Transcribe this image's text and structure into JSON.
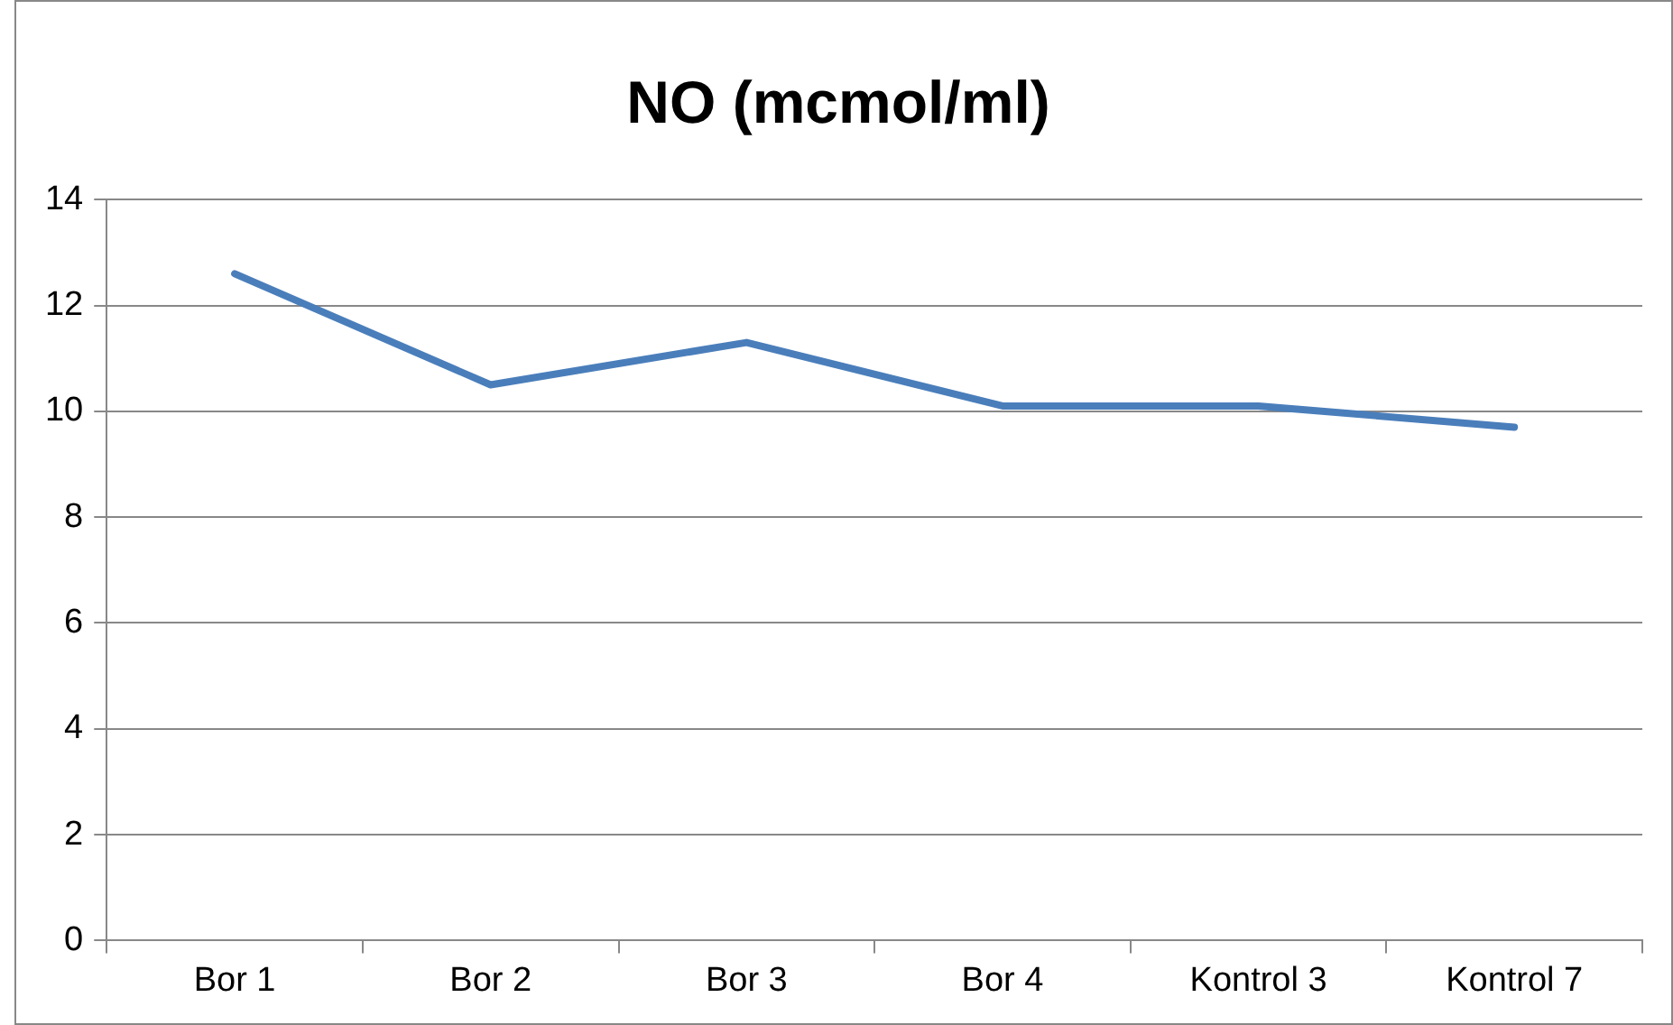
{
  "chart_data": {
    "type": "line",
    "title": "NO (mcmol/ml)",
    "categories": [
      "Bor 1",
      "Bor 2",
      "Bor 3",
      "Bor 4",
      "Kontrol 3",
      "Kontrol 7"
    ],
    "series": [
      {
        "color": "#4a7ebb",
        "values": [
          12.6,
          10.5,
          11.3,
          10.1,
          10.1,
          9.7
        ]
      }
    ],
    "ylim": [
      0,
      14
    ],
    "yticks": [
      0,
      2,
      4,
      6,
      8,
      10,
      12,
      14
    ],
    "grid": "y",
    "legend": false,
    "marker": "none",
    "line_style": "solid"
  }
}
